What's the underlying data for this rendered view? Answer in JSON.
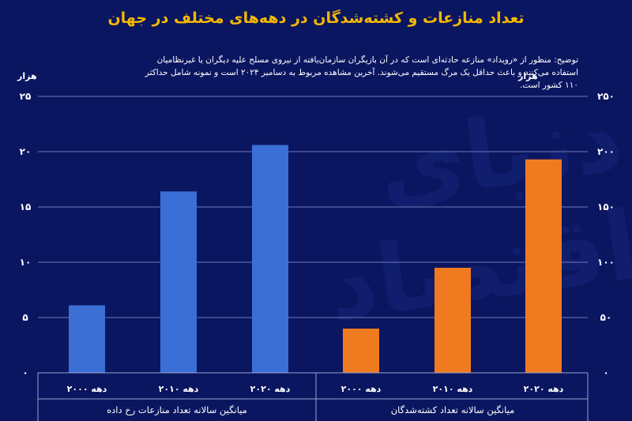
{
  "title": "تعداد منازعات و کشته‌شدگان در دهه‌های مختلف در جهان",
  "note": "توضیح: منظور از «رویداد» منازعه حادثه‌ای است که در آن بازیگران سازمان‌یافته از نیروی مسلح علیه دیگران یا غیرنظامیان استفاده می‌کنند و باعث حداقل یک مرگ مستقیم می‌شوند. آخرین مشاهده مربوط به دسامبر ۲۰۲۴ است و نمونه شامل حداکثر ۱۱۰ کشور است.",
  "watermark": "دنیای اقتصاد",
  "colors": {
    "background": "#0b1660",
    "title": "#f5b800",
    "left_series": "#3b6fd6",
    "right_series": "#f07a20",
    "grid": "#6f7bb8"
  },
  "chart_data": [
    {
      "type": "bar",
      "ylabel": "هزار",
      "ylim": [
        0,
        25
      ],
      "yticks": [
        "۰",
        "۵",
        "۱۰",
        "۱۵",
        "۲۰",
        "۲۵"
      ],
      "categories": [
        "دهه ۲۰۰۰",
        "دهه ۲۰۱۰",
        "دهه ۲۰۲۰"
      ],
      "values": [
        6.1,
        16.4,
        20.6
      ],
      "group_label": "میانگین سالانه تعداد منازعات رخ داده",
      "color": "#3b6fd6"
    },
    {
      "type": "bar",
      "ylabel": "هزار",
      "ylim": [
        0,
        250
      ],
      "yticks": [
        "۰",
        "۵۰",
        "۱۰۰",
        "۱۵۰",
        "۲۰۰",
        "۲۵۰"
      ],
      "categories": [
        "دهه ۲۰۰۰",
        "دهه ۲۰۱۰",
        "دهه ۲۰۲۰"
      ],
      "values": [
        40,
        95,
        193
      ],
      "group_label": "میانگین سالانه تعداد کشته‌شدگان",
      "color": "#f07a20"
    }
  ]
}
